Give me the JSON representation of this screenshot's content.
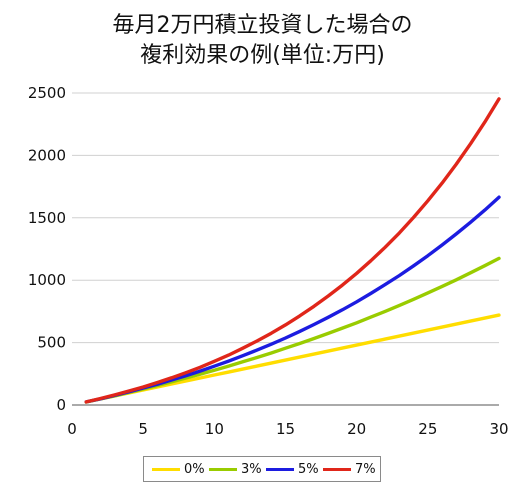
{
  "title": {
    "line1": "毎月2万円積立投資した場合の",
    "line2": "複利効果の例(単位:万円)"
  },
  "chart_data": {
    "type": "line",
    "title": "毎月2万円積立投資した場合の 複利効果の例(単位:万円)",
    "xlabel": "",
    "ylabel": "",
    "xlim": [
      0,
      30
    ],
    "ylim": [
      0,
      2500
    ],
    "xticks": [
      0,
      5,
      10,
      15,
      20,
      25,
      30
    ],
    "yticks": [
      0,
      500,
      1000,
      1500,
      2000,
      2500
    ],
    "grid": "horizontal",
    "legend_position": "bottom",
    "x": [
      1,
      2,
      3,
      4,
      5,
      6,
      7,
      8,
      9,
      10,
      11,
      12,
      13,
      14,
      15,
      16,
      17,
      18,
      19,
      20,
      21,
      22,
      23,
      24,
      25,
      26,
      27,
      28,
      29,
      30
    ],
    "series": [
      {
        "name": "0%",
        "color": "#ffdd00",
        "values": [
          24,
          48,
          72,
          96,
          120,
          144,
          168,
          192,
          216,
          240,
          264,
          288,
          312,
          336,
          360,
          384,
          408,
          432,
          456,
          480,
          504,
          528,
          552,
          576,
          600,
          624,
          648,
          672,
          696,
          720
        ]
      },
      {
        "name": "3%",
        "color": "#99cc00",
        "values": [
          24,
          49,
          74,
          101,
          128,
          156,
          186,
          216,
          247,
          279,
          312,
          346,
          381,
          417,
          455,
          493,
          533,
          574,
          616,
          659,
          704,
          750,
          798,
          847,
          898,
          950,
          1003,
          1059,
          1116,
          1175
        ]
      },
      {
        "name": "5%",
        "color": "#1c1ce0",
        "values": [
          25,
          50,
          78,
          106,
          136,
          167,
          200,
          235,
          272,
          311,
          352,
          395,
          440,
          487,
          537,
          590,
          645,
          703,
          763,
          827,
          894,
          965,
          1038,
          1115,
          1196,
          1282,
          1371,
          1464,
          1562,
          1665
        ]
      },
      {
        "name": "7%",
        "color": "#e0261a",
        "values": [
          25,
          52,
          81,
          112,
          144,
          180,
          218,
          259,
          302,
          350,
          400,
          455,
          513,
          575,
          642,
          714,
          791,
          873,
          961,
          1055,
          1156,
          1264,
          1379,
          1503,
          1636,
          1778,
          1930,
          2093,
          2267,
          2453
        ]
      }
    ]
  }
}
